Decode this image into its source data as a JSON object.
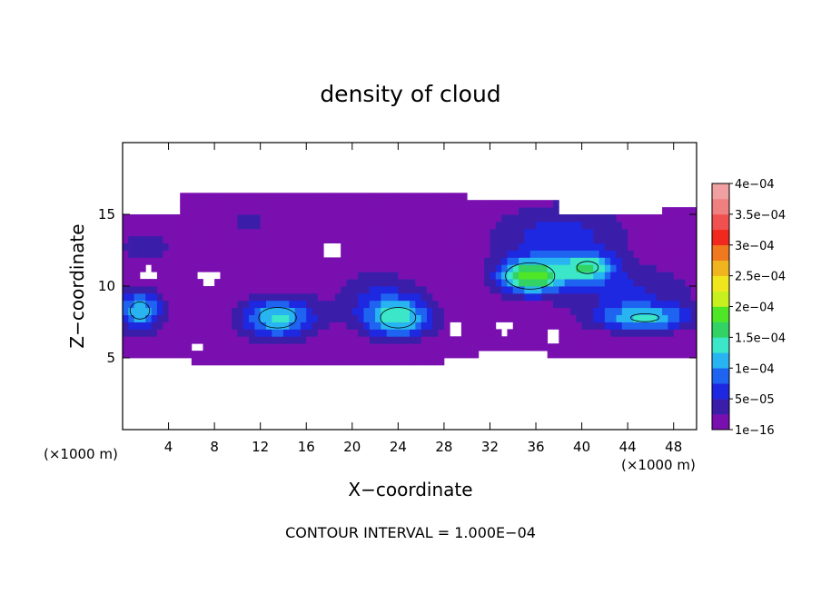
{
  "chart_data": {
    "type": "heatmap",
    "title": "density of cloud",
    "xlabel": "X−coordinate",
    "ylabel": "Z−coordinate",
    "x_unit": "(×1000 m)",
    "y_unit": "(×1000 m)",
    "xlim": [
      0,
      50
    ],
    "ylim": [
      0,
      20
    ],
    "x_ticks": [
      4,
      8,
      12,
      16,
      20,
      24,
      28,
      32,
      36,
      40,
      44,
      48
    ],
    "y_ticks": [
      5,
      10,
      15
    ],
    "footer": "CONTOUR INTERVAL = 1.000E−04",
    "colorbar": {
      "labels": [
        "1e−16",
        "5e−05",
        "1e−04",
        "1.5e−04",
        "2e−04",
        "2.5e−04",
        "3e−04",
        "3.5e−04",
        "4e−04"
      ],
      "level_values": [
        1e-16,
        5e-05,
        0.0001,
        0.00015,
        0.0002,
        0.00025,
        0.0003,
        0.00035,
        0.0004
      ],
      "colors": [
        "#7a0fb0",
        "#3a1eaa",
        "#1e28e0",
        "#1e64f0",
        "#28b4f0",
        "#3ce6c8",
        "#32d264",
        "#50e628",
        "#c8f01e",
        "#f0e61e",
        "#f0b41e",
        "#f0781e",
        "#f0281e",
        "#f05050",
        "#f08080",
        "#f0a0a0"
      ]
    },
    "contour_level": 0.0001,
    "grid": false,
    "legend": "colorbar right",
    "field": {
      "background": 1e-16,
      "blobs": [
        {
          "x": 13.5,
          "z": 7.8,
          "rx": 3.2,
          "rz": 1.4,
          "value": 0.00013
        },
        {
          "x": 24.0,
          "z": 7.8,
          "rx": 3.0,
          "rz": 1.4,
          "value": 0.00013
        },
        {
          "x": 1.5,
          "z": 8.3,
          "rx": 2.0,
          "rz": 1.4,
          "value": 0.00012
        },
        {
          "x": 35.5,
          "z": 10.7,
          "rx": 2.8,
          "rz": 1.2,
          "value": 0.00018
        },
        {
          "x": 40.5,
          "z": 11.3,
          "rx": 2.2,
          "rz": 1.0,
          "value": 0.00012
        },
        {
          "x": 45.5,
          "z": 7.8,
          "rx": 4.0,
          "rz": 0.9,
          "value": 0.00011
        },
        {
          "x": 38.0,
          "z": 13.5,
          "rx": 6.0,
          "rz": 2.3,
          "value": 6e-05
        },
        {
          "x": 2.0,
          "z": 12.8,
          "rx": 2.5,
          "rz": 1.0,
          "value": 4e-05
        },
        {
          "x": 11.0,
          "z": 14.5,
          "rx": 2.5,
          "rz": 1.2,
          "value": 3e-05
        },
        {
          "x": 22.0,
          "z": 9.5,
          "rx": 4.0,
          "rz": 2.0,
          "value": 4e-05
        },
        {
          "x": 44.0,
          "z": 9.5,
          "rx": 6.0,
          "rz": 2.0,
          "value": 5e-05
        }
      ]
    }
  }
}
